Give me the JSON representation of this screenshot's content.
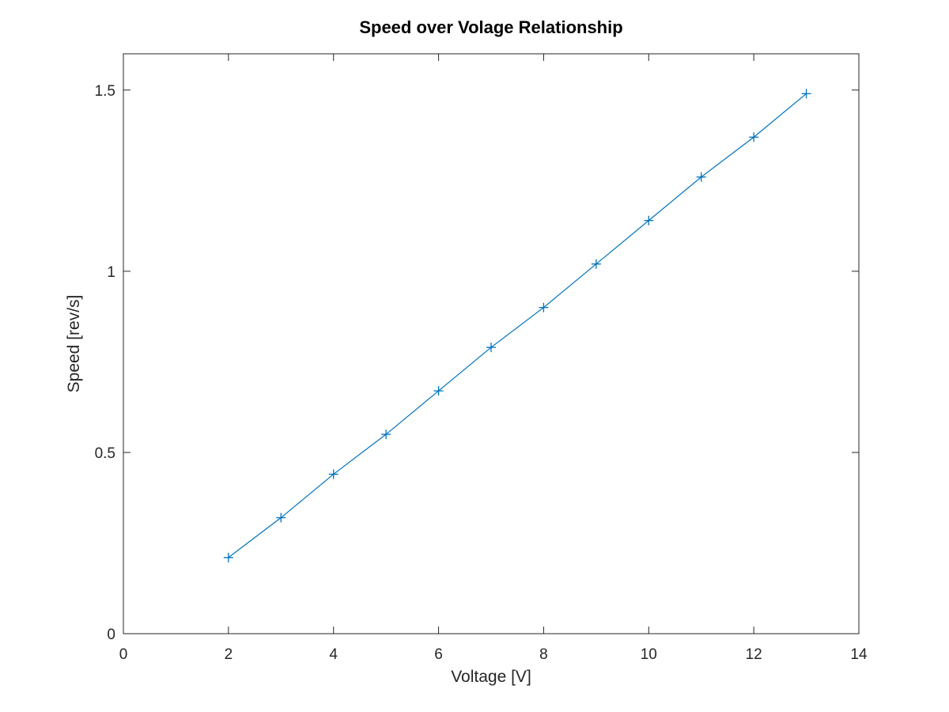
{
  "chart_data": {
    "type": "line",
    "title": "Speed over Volage Relationship",
    "xlabel": "Voltage [V]",
    "ylabel": "Speed [rev/s]",
    "xlim": [
      0,
      14
    ],
    "ylim": [
      0,
      1.6
    ],
    "x_ticks": [
      0,
      2,
      4,
      6,
      8,
      10,
      12,
      14
    ],
    "y_ticks": [
      0,
      0.5,
      1,
      1.5
    ],
    "x_tick_labels": [
      "0",
      "2",
      "4",
      "6",
      "8",
      "10",
      "12",
      "14"
    ],
    "y_tick_labels": [
      "0",
      "0.5",
      "1",
      "1.5"
    ],
    "grid": false,
    "marker": "+",
    "series": [
      {
        "color": "#0072BD",
        "x": [
          2,
          3,
          4,
          5,
          6,
          7,
          8,
          9,
          10,
          11,
          12,
          13
        ],
        "y": [
          0.21,
          0.32,
          0.44,
          0.55,
          0.67,
          0.79,
          0.9,
          1.02,
          1.14,
          1.26,
          1.37,
          1.49
        ]
      }
    ]
  }
}
